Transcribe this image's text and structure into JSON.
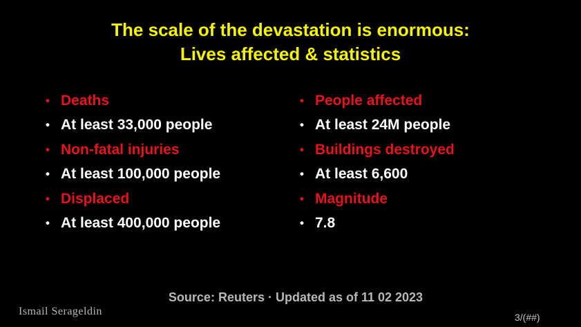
{
  "title": [
    "The scale of the devastation is enormous:",
    "Lives affected & statistics"
  ],
  "columns": [
    {
      "items": [
        {
          "label": "Deaths",
          "value": "At least 33,000 people"
        },
        {
          "label": "Non-fatal injuries",
          "value": "At least 100,000 people"
        },
        {
          "label": "Displaced",
          "value": "At least 400,000 people"
        }
      ]
    },
    {
      "items": [
        {
          "label": "People affected",
          "value": "At least 24M people"
        },
        {
          "label": "Buildings destroyed",
          "value": "At least 6,600"
        },
        {
          "label": "Magnitude",
          "value": "7.8"
        }
      ]
    }
  ],
  "source": "Source: Reuters · Updated as of 11 02 2023",
  "author": "Ismail Serageldin",
  "page_number": "3/(##)"
}
